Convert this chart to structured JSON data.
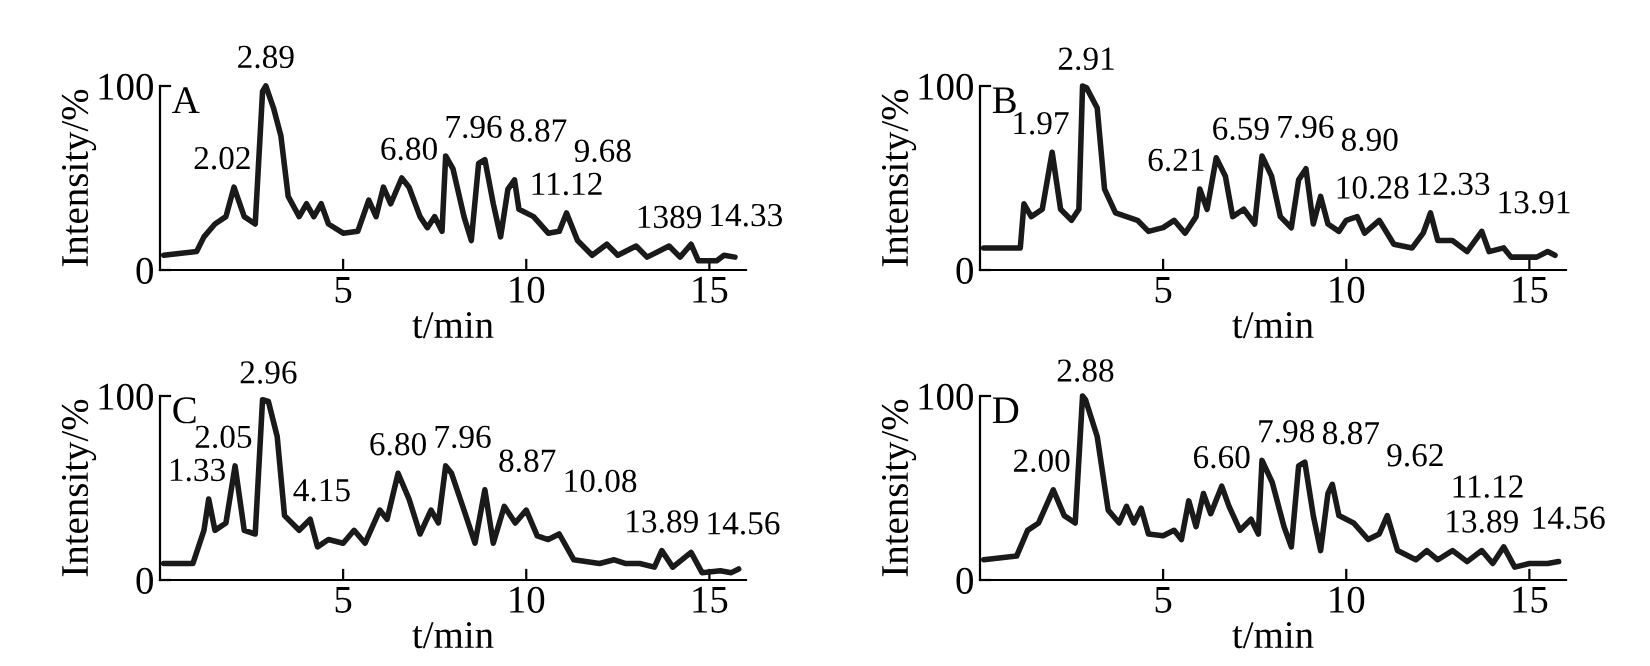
{
  "chart_data": [
    {
      "type": "line",
      "title": "A",
      "xlabel": "t/min",
      "ylabel": "Intensity/%",
      "xlim": [
        0,
        16
      ],
      "ylim": [
        0,
        100
      ],
      "xticks": [
        5,
        10,
        15
      ],
      "yticks": [
        0,
        100
      ],
      "grid": false,
      "legend": false,
      "marker": "none",
      "line_style": "solid",
      "series": [
        {
          "color": "#1a1a1a",
          "x": [
            0.1,
            1.0,
            1.2,
            1.5,
            1.8,
            2.02,
            2.3,
            2.6,
            2.8,
            2.89,
            3.1,
            3.3,
            3.5,
            3.8,
            4.0,
            4.2,
            4.4,
            4.6,
            5.0,
            5.4,
            5.7,
            5.9,
            6.1,
            6.3,
            6.6,
            6.8,
            7.1,
            7.3,
            7.5,
            7.7,
            7.8,
            8.0,
            8.3,
            8.5,
            8.7,
            8.87,
            9.1,
            9.3,
            9.5,
            9.68,
            9.8,
            10.2,
            10.6,
            10.9,
            11.1,
            11.4,
            11.8,
            12.2,
            12.5,
            13.0,
            13.3,
            13.9,
            14.2,
            14.5,
            14.7,
            15.2,
            15.4,
            15.7
          ],
          "values": [
            8,
            10,
            18,
            25,
            29,
            45,
            29,
            25,
            97,
            100,
            88,
            73,
            40,
            29,
            36,
            29,
            36,
            25,
            20,
            21,
            38,
            29,
            45,
            36,
            50,
            45,
            29,
            23,
            29,
            21,
            62,
            55,
            29,
            16,
            58,
            60,
            36,
            18,
            44,
            49,
            33,
            29,
            20,
            21,
            31,
            16,
            8,
            14,
            8,
            13,
            7,
            13,
            7,
            14,
            5,
            5,
            8,
            7
          ]
        }
      ],
      "annotations": [
        {
          "text": "2.02",
          "x": 2.02,
          "y": 45
        },
        {
          "text": "2.89",
          "x": 2.89,
          "y": 100
        },
        {
          "text": "6.80",
          "x": 6.8,
          "y": 50
        },
        {
          "text": "7.96",
          "x": 7.8,
          "y": 62
        },
        {
          "text": "8.87",
          "x": 8.87,
          "y": 60
        },
        {
          "text": "9.68",
          "x": 9.68,
          "y": 49
        },
        {
          "text": "11.12",
          "x": 11.1,
          "y": 31
        },
        {
          "text": "1389",
          "x": 13.9,
          "y": 13
        },
        {
          "text": "14.33",
          "x": 14.5,
          "y": 14
        }
      ]
    },
    {
      "type": "line",
      "title": "B",
      "xlabel": "t/min",
      "ylabel": "Intensity/%",
      "xlim": [
        0,
        16
      ],
      "ylim": [
        0,
        100
      ],
      "xticks": [
        5,
        10,
        15
      ],
      "yticks": [
        0,
        100
      ],
      "grid": false,
      "legend": false,
      "marker": "none",
      "line_style": "solid",
      "series": [
        {
          "color": "#1a1a1a",
          "x": [
            0.1,
            1.0,
            1.1,
            1.2,
            1.4,
            1.7,
            1.97,
            2.2,
            2.5,
            2.7,
            2.8,
            2.91,
            3.2,
            3.4,
            3.7,
            4.0,
            4.3,
            4.6,
            5.0,
            5.3,
            5.6,
            5.9,
            6.0,
            6.2,
            6.45,
            6.7,
            6.9,
            7.2,
            7.5,
            7.7,
            7.96,
            8.2,
            8.5,
            8.7,
            8.9,
            9.1,
            9.3,
            9.5,
            9.8,
            10.0,
            10.3,
            10.5,
            10.9,
            11.3,
            11.8,
            12.1,
            12.3,
            12.5,
            12.9,
            13.3,
            13.7,
            13.9,
            14.3,
            14.5,
            15.2,
            15.5,
            15.7
          ],
          "values": [
            12,
            12,
            12,
            36,
            29,
            33,
            64,
            33,
            27,
            33,
            100,
            99,
            88,
            44,
            31,
            29,
            27,
            21,
            23,
            27,
            20,
            29,
            44,
            33,
            61,
            51,
            29,
            33,
            25,
            62,
            51,
            29,
            23,
            49,
            55,
            25,
            40,
            25,
            21,
            27,
            29,
            20,
            27,
            14,
            12,
            20,
            31,
            16,
            16,
            10,
            21,
            10,
            12,
            7,
            7,
            10,
            8
          ]
        }
      ],
      "annotations": [
        {
          "text": "1.97",
          "x": 1.97,
          "y": 64
        },
        {
          "text": "2.91",
          "x": 2.91,
          "y": 99
        },
        {
          "text": "6.21",
          "x": 6.0,
          "y": 44
        },
        {
          "text": "6.59",
          "x": 6.45,
          "y": 61
        },
        {
          "text": "7.96",
          "x": 7.7,
          "y": 62
        },
        {
          "text": "8.90",
          "x": 8.9,
          "y": 55
        },
        {
          "text": "10.28",
          "x": 10.3,
          "y": 29
        },
        {
          "text": "12.33",
          "x": 12.3,
          "y": 31
        },
        {
          "text": "13.91",
          "x": 13.7,
          "y": 21
        }
      ]
    },
    {
      "type": "line",
      "title": "C",
      "xlabel": "t/min",
      "ylabel": "Intensity/%",
      "xlim": [
        0,
        16
      ],
      "ylim": [
        0,
        100
      ],
      "xticks": [
        5,
        10,
        15
      ],
      "yticks": [
        0,
        100
      ],
      "grid": false,
      "legend": false,
      "marker": "none",
      "line_style": "solid",
      "series": [
        {
          "color": "#1a1a1a",
          "x": [
            0.1,
            0.9,
            1.2,
            1.33,
            1.5,
            1.8,
            2.05,
            2.3,
            2.6,
            2.8,
            2.96,
            3.2,
            3.4,
            3.8,
            4.1,
            4.3,
            4.6,
            5.0,
            5.3,
            5.6,
            6.0,
            6.2,
            6.5,
            6.8,
            7.1,
            7.4,
            7.6,
            7.8,
            7.96,
            8.3,
            8.6,
            8.87,
            9.1,
            9.4,
            9.7,
            10.0,
            10.3,
            10.6,
            10.9,
            11.3,
            12.0,
            12.4,
            12.7,
            13.1,
            13.5,
            13.7,
            14.0,
            14.5,
            14.8,
            15.3,
            15.6,
            15.8
          ],
          "values": [
            9,
            9,
            27,
            44,
            27,
            31,
            62,
            27,
            25,
            98,
            97,
            78,
            35,
            27,
            33,
            18,
            22,
            20,
            27,
            20,
            38,
            33,
            58,
            44,
            25,
            38,
            31,
            62,
            58,
            38,
            20,
            49,
            20,
            40,
            31,
            38,
            24,
            22,
            25,
            11,
            9,
            11,
            9,
            9,
            7,
            16,
            7,
            15,
            4,
            5,
            4,
            6
          ]
        }
      ],
      "annotations": [
        {
          "text": "1.33",
          "x": 1.33,
          "y": 44
        },
        {
          "text": "2.05",
          "x": 2.05,
          "y": 62
        },
        {
          "text": "2.96",
          "x": 2.96,
          "y": 97
        },
        {
          "text": "4.15",
          "x": 4.1,
          "y": 33
        },
        {
          "text": "6.80",
          "x": 6.5,
          "y": 58
        },
        {
          "text": "7.96",
          "x": 7.8,
          "y": 62
        },
        {
          "text": "8.87",
          "x": 8.87,
          "y": 49
        },
        {
          "text": "10.08",
          "x": 10.0,
          "y": 38
        },
        {
          "text": "13.89",
          "x": 13.7,
          "y": 16
        },
        {
          "text": "14.56",
          "x": 14.5,
          "y": 15
        }
      ]
    },
    {
      "type": "line",
      "title": "D",
      "xlabel": "t/min",
      "ylabel": "Intensity/%",
      "xlim": [
        0,
        16
      ],
      "ylim": [
        0,
        100
      ],
      "xticks": [
        5,
        10,
        15
      ],
      "yticks": [
        0,
        100
      ],
      "grid": false,
      "legend": false,
      "marker": "none",
      "line_style": "solid",
      "series": [
        {
          "color": "#1a1a1a",
          "x": [
            0.1,
            1.0,
            1.3,
            1.6,
            2.0,
            2.3,
            2.6,
            2.8,
            2.88,
            3.2,
            3.5,
            3.8,
            4.0,
            4.2,
            4.4,
            4.6,
            5.0,
            5.3,
            5.5,
            5.7,
            5.9,
            6.1,
            6.3,
            6.6,
            6.8,
            7.1,
            7.4,
            7.6,
            7.7,
            7.98,
            8.3,
            8.5,
            8.7,
            8.87,
            9.1,
            9.3,
            9.5,
            9.62,
            9.8,
            10.2,
            10.6,
            10.9,
            11.12,
            11.4,
            11.9,
            12.2,
            12.5,
            12.9,
            13.3,
            13.7,
            14.0,
            14.3,
            14.6,
            15.0,
            15.5,
            15.8
          ],
          "values": [
            11,
            13,
            27,
            31,
            49,
            35,
            31,
            100,
            98,
            78,
            38,
            31,
            40,
            31,
            39,
            25,
            24,
            27,
            22,
            43,
            29,
            47,
            36,
            51,
            40,
            27,
            33,
            25,
            65,
            53,
            29,
            18,
            62,
            64,
            35,
            16,
            47,
            52,
            35,
            31,
            22,
            25,
            35,
            16,
            11,
            16,
            11,
            16,
            10,
            16,
            9,
            18,
            7,
            9,
            9,
            10
          ]
        }
      ],
      "annotations": [
        {
          "text": "2.00",
          "x": 2.0,
          "y": 49
        },
        {
          "text": "2.88",
          "x": 2.88,
          "y": 98
        },
        {
          "text": "6.60",
          "x": 6.6,
          "y": 51
        },
        {
          "text": "7.98",
          "x": 7.7,
          "y": 65
        },
        {
          "text": "8.87",
          "x": 8.87,
          "y": 64
        },
        {
          "text": "9.62",
          "x": 9.62,
          "y": 52
        },
        {
          "text": "11.12",
          "x": 11.12,
          "y": 35
        },
        {
          "text": "13.89",
          "x": 13.7,
          "y": 16
        },
        {
          "text": "14.56",
          "x": 14.3,
          "y": 18
        }
      ]
    }
  ]
}
